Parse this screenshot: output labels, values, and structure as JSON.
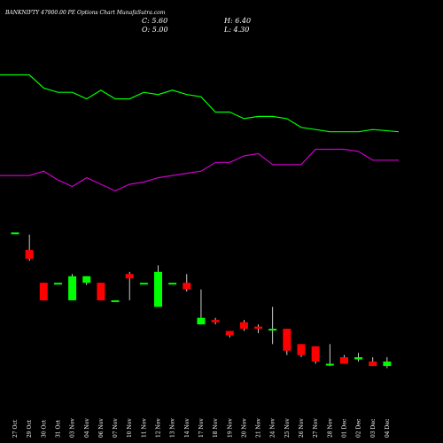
{
  "header": {
    "title": "BANKNIFTY 47900.00 PE Options  Chart MunafaSutra.com",
    "close_text": "C: 5.60",
    "open_text": "O: 5.00",
    "high_text": "H: 6.40",
    "low_text": "L: 4.30"
  },
  "colors": {
    "background": "#000000",
    "bull": "#00ff00",
    "bear": "#ff0000",
    "ma_fast": "#00ff00",
    "ma_slow": "#cc00cc",
    "text": "#ffffff"
  },
  "chart_data": {
    "type": "candlestick",
    "title": "BANKNIFTY 47900.00 PE Options  Chart MunafaSutra.com",
    "categories": [
      "27 Oct",
      "29 Oct",
      "30 Oct",
      "31 Oct",
      "03 Nov",
      "04 Nov",
      "06 Nov",
      "07 Nov",
      "10 Nov",
      "11 Nov",
      "12 Nov",
      "13 Nov",
      "14 Nov",
      "17 Nov",
      "18 Nov",
      "19 Nov",
      "20 Nov",
      "21 Nov",
      "24 Nov",
      "25 Nov",
      "26 Nov",
      "27 Nov",
      "28 Nov",
      "01 Dec",
      "02 Dec",
      "03 Dec",
      "04 Dec"
    ],
    "ohlc": [
      {
        "open": 120,
        "high": 120,
        "low": 120,
        "close": 120
      },
      {
        "open": 112,
        "high": 119,
        "low": 107,
        "close": 108
      },
      {
        "open": 97,
        "high": 97,
        "low": 89,
        "close": 89
      },
      {
        "open": 97,
        "high": 97,
        "low": 97,
        "close": 97
      },
      {
        "open": 89,
        "high": 101,
        "low": 89,
        "close": 100
      },
      {
        "open": 97,
        "high": 100,
        "low": 96,
        "close": 100
      },
      {
        "open": 97,
        "high": 97,
        "low": 89,
        "close": 89
      },
      {
        "open": 89,
        "high": 89,
        "low": 89,
        "close": 89
      },
      {
        "open": 101,
        "high": 102,
        "low": 89,
        "close": 99
      },
      {
        "open": 97,
        "high": 97,
        "low": 97,
        "close": 97
      },
      {
        "open": 86,
        "high": 105,
        "low": 86,
        "close": 102
      },
      {
        "open": 97,
        "high": 97,
        "low": 97,
        "close": 97
      },
      {
        "open": 97,
        "high": 101,
        "low": 93,
        "close": 94
      },
      {
        "open": 78,
        "high": 94,
        "low": 78,
        "close": 81
      },
      {
        "open": 80,
        "high": 81,
        "low": 78,
        "close": 79
      },
      {
        "open": 75,
        "high": 75,
        "low": 72,
        "close": 73
      },
      {
        "open": 79,
        "high": 80,
        "low": 75,
        "close": 76
      },
      {
        "open": 77,
        "high": 78,
        "low": 74,
        "close": 76
      },
      {
        "open": 76,
        "high": 86,
        "low": 69,
        "close": 76
      },
      {
        "open": 76,
        "high": 76,
        "low": 64,
        "close": 66
      },
      {
        "open": 69,
        "high": 69,
        "low": 63,
        "close": 64
      },
      {
        "open": 68,
        "high": 68,
        "low": 60,
        "close": 61
      },
      {
        "open": 60,
        "high": 69,
        "low": 59,
        "close": 60
      },
      {
        "open": 63,
        "high": 64,
        "low": 60,
        "close": 60
      },
      {
        "open": 62,
        "high": 65,
        "low": 61,
        "close": 63
      },
      {
        "open": 61,
        "high": 63,
        "low": 59,
        "close": 59
      },
      {
        "open": 59,
        "high": 63,
        "low": 58,
        "close": 61
      }
    ],
    "ma_fast": [
      192,
      192,
      186,
      184,
      184,
      181,
      185,
      181,
      181,
      184,
      183,
      185,
      183,
      182,
      175,
      175,
      172,
      173,
      173,
      172,
      168,
      167,
      166,
      166,
      166,
      167,
      166
    ],
    "ma_slow": [
      146,
      146,
      148,
      144,
      141,
      145,
      142,
      139,
      142,
      143,
      145,
      146,
      147,
      148,
      152,
      152,
      155,
      156,
      151,
      151,
      151,
      158,
      158,
      158,
      157,
      153,
      153
    ],
    "ylim": [
      40,
      210
    ]
  }
}
